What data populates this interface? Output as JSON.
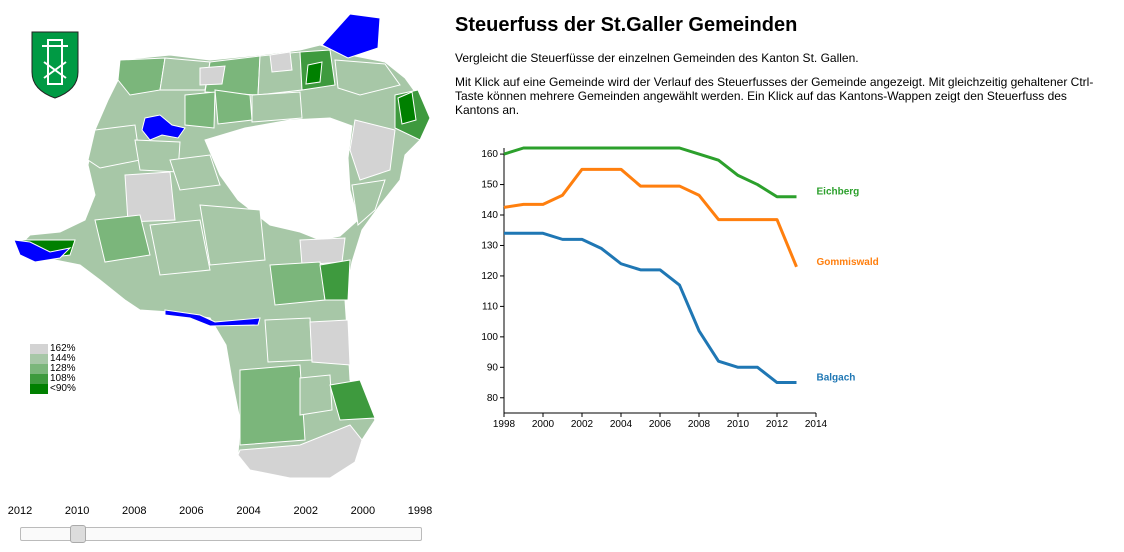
{
  "header": {
    "title": "Steuerfuss der St.Galler Gemeinden",
    "intro": "Vergleicht die Steuerfüsse der einzelnen Gemeinden des Kanton St. Gallen.",
    "instructions": "Mit Klick auf eine Gemeinde wird der Verlauf des Steuerfusses der Gemeinde angezeigt. Mit gleichzeitig gehaltener Ctrl-Taste können mehrere Gemeinden angewählt werden. Ein Klick auf das Kantons-Wappen zeigt den Steuerfuss des Kantons an."
  },
  "legend": {
    "items": [
      {
        "label": "162%",
        "color": "#d3d3d3"
      },
      {
        "label": "144%",
        "color": "#a7c7a7"
      },
      {
        "label": "128%",
        "color": "#7bb67b"
      },
      {
        "label": "108%",
        "color": "#3e9a3e"
      },
      {
        "label": "<90%",
        "color": "#008000"
      }
    ]
  },
  "map": {
    "coat_of_arms_icon": "st-gallen-coat-of-arms-icon",
    "selected_color": "#0000ff"
  },
  "slider": {
    "ticks": [
      "2012",
      "2010",
      "2008",
      "2006",
      "2004",
      "2002",
      "2000",
      "1998"
    ],
    "selected_year": 2010
  },
  "chart_data": {
    "type": "line",
    "xlim": [
      1998,
      2014
    ],
    "ylim": [
      75,
      162
    ],
    "xticks": [
      1998,
      2000,
      2002,
      2004,
      2006,
      2008,
      2010,
      2012,
      2014
    ],
    "yticks": [
      80,
      90,
      100,
      110,
      120,
      130,
      140,
      150,
      160
    ],
    "x": [
      1998,
      1999,
      2000,
      2001,
      2002,
      2003,
      2004,
      2005,
      2006,
      2007,
      2008,
      2009,
      2010,
      2011,
      2012,
      2013
    ],
    "series": [
      {
        "name": "Eichberg",
        "color": "#2ca02c",
        "values": [
          160,
          162,
          162,
          162,
          162,
          162,
          162,
          162,
          162,
          162,
          160,
          158,
          153,
          150,
          146,
          146
        ]
      },
      {
        "name": "Gommiswald",
        "color": "#ff7f0e",
        "values": [
          142.5,
          143.5,
          143.5,
          146.5,
          155,
          155,
          155,
          149.5,
          149.5,
          149.5,
          146.5,
          138.5,
          138.5,
          138.5,
          138.5,
          123
        ]
      },
      {
        "name": "Balgach",
        "color": "#1f77b4",
        "values": [
          134,
          134,
          134,
          132,
          132,
          129,
          124,
          122,
          122,
          117,
          102,
          92,
          90,
          90,
          85,
          85
        ]
      }
    ]
  }
}
